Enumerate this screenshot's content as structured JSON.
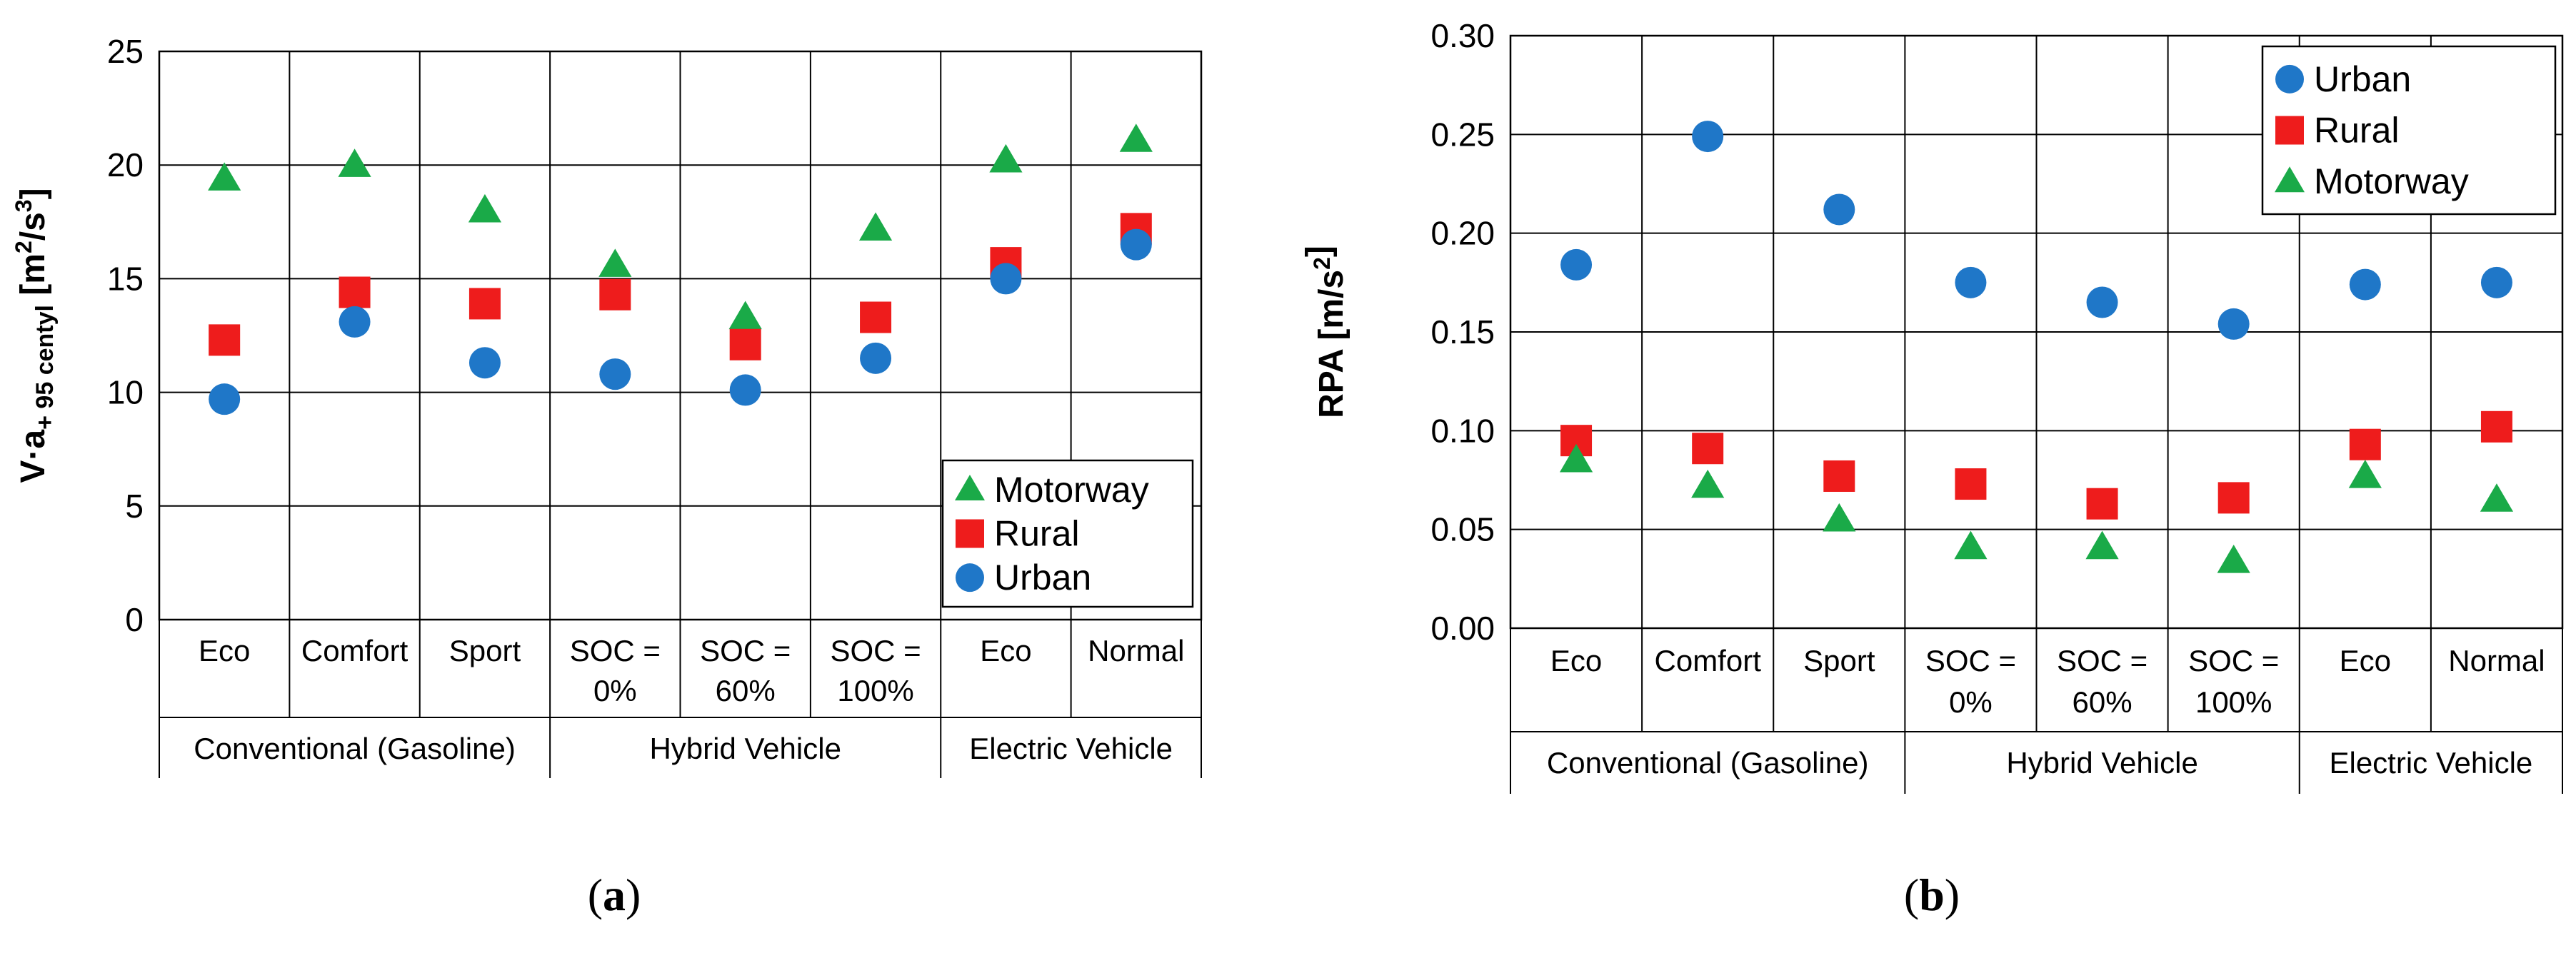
{
  "colors": {
    "Urban": "#1f77c8",
    "Rural": "#ee1c1c",
    "Motorway": "#1aaa48"
  },
  "chart_data": [
    {
      "id": "a",
      "type": "scatter",
      "caption_open": "(",
      "caption_letter": "a",
      "caption_close": ")",
      "ylabel_main": "V·a",
      "ylabel_sub": "+ 95 centyl",
      "ylabel_unit_open": " [m",
      "ylabel_unit_sup1": "2",
      "ylabel_unit_mid": "/s",
      "ylabel_unit_sup2": "3",
      "ylabel_unit_close": "]",
      "ylim": [
        0,
        25
      ],
      "yticks": [
        "0",
        "5",
        "10",
        "15",
        "20",
        "25"
      ],
      "categories": [
        [
          "Eco"
        ],
        [
          "Comfort"
        ],
        [
          "Sport"
        ],
        [
          "SOC =",
          "0%"
        ],
        [
          "SOC =",
          "60%"
        ],
        [
          "SOC =",
          "100%"
        ],
        [
          "Eco"
        ],
        [
          "Normal"
        ]
      ],
      "groups": [
        {
          "label": "Conventional (Gasoline)",
          "start": 0,
          "end": 3
        },
        {
          "label": "Hybrid Vehicle",
          "start": 3,
          "end": 6
        },
        {
          "label": "Electric Vehicle",
          "start": 6,
          "end": 8
        }
      ],
      "legend_position": "bottom-right",
      "legend_order": [
        "Motorway",
        "Rural",
        "Urban"
      ],
      "series": [
        {
          "name": "Urban",
          "marker": "circle",
          "values": [
            9.7,
            13.1,
            11.3,
            10.8,
            10.1,
            11.5,
            15.0,
            16.5
          ]
        },
        {
          "name": "Rural",
          "marker": "square",
          "values": [
            12.3,
            14.4,
            13.9,
            14.3,
            12.1,
            13.3,
            15.7,
            17.2
          ]
        },
        {
          "name": "Motorway",
          "marker": "triangle",
          "values": [
            19.4,
            20.0,
            18.0,
            15.6,
            13.3,
            17.2,
            20.2,
            21.1
          ]
        }
      ]
    },
    {
      "id": "b",
      "type": "scatter",
      "caption_open": "(",
      "caption_letter": "b",
      "caption_close": ")",
      "ylabel_main": "RPA",
      "ylabel_sub": "",
      "ylabel_unit_open": " [m/s",
      "ylabel_unit_sup1": "2",
      "ylabel_unit_mid": "",
      "ylabel_unit_sup2": "",
      "ylabel_unit_close": "]",
      "ylim": [
        0,
        0.3
      ],
      "yticks": [
        "0.00",
        "0.05",
        "0.10",
        "0.15",
        "0.20",
        "0.25",
        "0.30"
      ],
      "categories": [
        [
          "Eco"
        ],
        [
          "Comfort"
        ],
        [
          "Sport"
        ],
        [
          "SOC =",
          "0%"
        ],
        [
          "SOC =",
          "60%"
        ],
        [
          "SOC =",
          "100%"
        ],
        [
          "Eco"
        ],
        [
          "Normal"
        ]
      ],
      "groups": [
        {
          "label": "Conventional (Gasoline)",
          "start": 0,
          "end": 3
        },
        {
          "label": "Hybrid Vehicle",
          "start": 3,
          "end": 6
        },
        {
          "label": "Electric Vehicle",
          "start": 6,
          "end": 8
        }
      ],
      "legend_position": "top-right",
      "legend_order": [
        "Urban",
        "Rural",
        "Motorway"
      ],
      "series": [
        {
          "name": "Urban",
          "marker": "circle",
          "values": [
            0.184,
            0.249,
            0.212,
            0.175,
            0.165,
            0.154,
            0.174,
            0.175
          ]
        },
        {
          "name": "Rural",
          "marker": "square",
          "values": [
            0.095,
            0.091,
            0.077,
            0.073,
            0.063,
            0.066,
            0.093,
            0.102
          ]
        },
        {
          "name": "Motorway",
          "marker": "triangle",
          "values": [
            0.085,
            0.072,
            0.055,
            0.041,
            0.041,
            0.034,
            0.077,
            0.065
          ]
        }
      ]
    }
  ]
}
